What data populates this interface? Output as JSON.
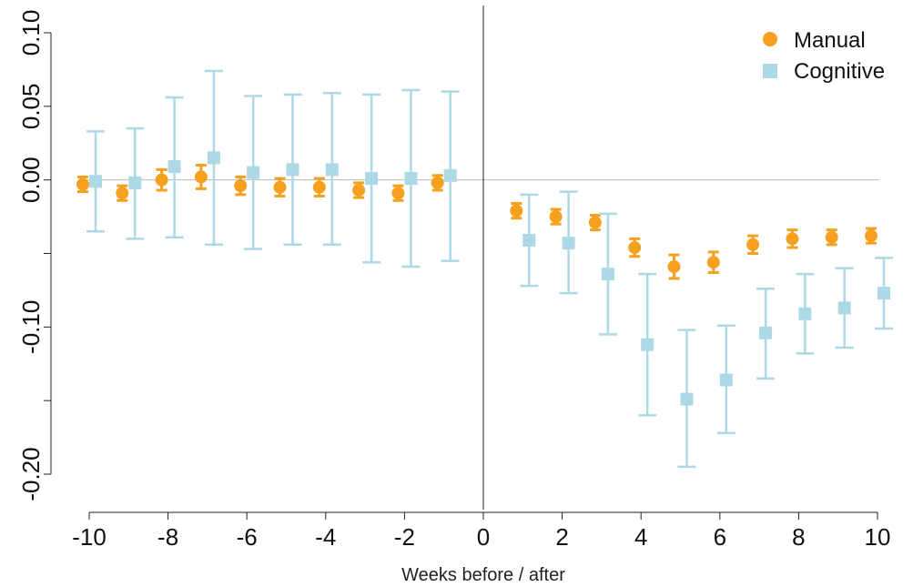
{
  "chart_data": {
    "type": "scatter",
    "title": "",
    "xlabel": "Weeks before / after",
    "ylabel": "",
    "xlim": [
      -10,
      10
    ],
    "ylim": [
      -0.2,
      0.1
    ],
    "xticks": [
      "-10",
      "-8",
      "-6",
      "-4",
      "-2",
      "0",
      "2",
      "4",
      "6",
      "8",
      "10"
    ],
    "yticks": [
      "0.10",
      "0.05",
      "0.00",
      "-0.10",
      "-0.20"
    ],
    "ytick_values": [
      0.1,
      0.05,
      0.0,
      -0.1,
      -0.2
    ],
    "y_minor_ticks": [
      -0.05,
      -0.15
    ],
    "reference_lines": {
      "horizontal": 0.0,
      "vertical": 0
    },
    "grid": false,
    "legend_position": "top-right",
    "series": [
      {
        "name": "Manual",
        "marker": "circle",
        "color": "#F5A01F",
        "points": [
          {
            "x": -10,
            "y": -0.003,
            "lo": -0.008,
            "hi": 0.002
          },
          {
            "x": -9,
            "y": -0.009,
            "lo": -0.014,
            "hi": -0.004
          },
          {
            "x": -8,
            "y": 0.0,
            "lo": -0.007,
            "hi": 0.007
          },
          {
            "x": -7,
            "y": 0.002,
            "lo": -0.006,
            "hi": 0.01
          },
          {
            "x": -6,
            "y": -0.004,
            "lo": -0.01,
            "hi": 0.002
          },
          {
            "x": -5,
            "y": -0.005,
            "lo": -0.011,
            "hi": 0.001
          },
          {
            "x": -4,
            "y": -0.005,
            "lo": -0.011,
            "hi": 0.001
          },
          {
            "x": -3,
            "y": -0.007,
            "lo": -0.012,
            "hi": -0.002
          },
          {
            "x": -2,
            "y": -0.009,
            "lo": -0.014,
            "hi": -0.004
          },
          {
            "x": -1,
            "y": -0.002,
            "lo": -0.007,
            "hi": 0.003
          },
          {
            "x": 1,
            "y": -0.021,
            "lo": -0.026,
            "hi": -0.016
          },
          {
            "x": 2,
            "y": -0.025,
            "lo": -0.03,
            "hi": -0.02
          },
          {
            "x": 3,
            "y": -0.029,
            "lo": -0.034,
            "hi": -0.024
          },
          {
            "x": 4,
            "y": -0.046,
            "lo": -0.052,
            "hi": -0.04
          },
          {
            "x": 5,
            "y": -0.059,
            "lo": -0.067,
            "hi": -0.051
          },
          {
            "x": 6,
            "y": -0.056,
            "lo": -0.063,
            "hi": -0.049
          },
          {
            "x": 7,
            "y": -0.044,
            "lo": -0.05,
            "hi": -0.038
          },
          {
            "x": 8,
            "y": -0.04,
            "lo": -0.046,
            "hi": -0.034
          },
          {
            "x": 9,
            "y": -0.039,
            "lo": -0.044,
            "hi": -0.034
          },
          {
            "x": 10,
            "y": -0.038,
            "lo": -0.043,
            "hi": -0.033
          }
        ]
      },
      {
        "name": "Cognitive",
        "marker": "square",
        "color": "#ADD8E6",
        "points": [
          {
            "x": -10,
            "y": -0.001,
            "lo": -0.035,
            "hi": 0.033
          },
          {
            "x": -9,
            "y": -0.002,
            "lo": -0.04,
            "hi": 0.035
          },
          {
            "x": -8,
            "y": 0.009,
            "lo": -0.039,
            "hi": 0.056
          },
          {
            "x": -7,
            "y": 0.015,
            "lo": -0.044,
            "hi": 0.074
          },
          {
            "x": -6,
            "y": 0.005,
            "lo": -0.047,
            "hi": 0.057
          },
          {
            "x": -5,
            "y": 0.007,
            "lo": -0.044,
            "hi": 0.058
          },
          {
            "x": -4,
            "y": 0.007,
            "lo": -0.044,
            "hi": 0.059
          },
          {
            "x": -3,
            "y": 0.001,
            "lo": -0.056,
            "hi": 0.058
          },
          {
            "x": -2,
            "y": 0.001,
            "lo": -0.059,
            "hi": 0.061
          },
          {
            "x": -1,
            "y": 0.003,
            "lo": -0.055,
            "hi": 0.06
          },
          {
            "x": 1,
            "y": -0.041,
            "lo": -0.072,
            "hi": -0.01
          },
          {
            "x": 2,
            "y": -0.043,
            "lo": -0.077,
            "hi": -0.008
          },
          {
            "x": 3,
            "y": -0.064,
            "lo": -0.105,
            "hi": -0.023
          },
          {
            "x": 4,
            "y": -0.112,
            "lo": -0.16,
            "hi": -0.064
          },
          {
            "x": 5,
            "y": -0.149,
            "lo": -0.195,
            "hi": -0.102
          },
          {
            "x": 6,
            "y": -0.136,
            "lo": -0.172,
            "hi": -0.099
          },
          {
            "x": 7,
            "y": -0.104,
            "lo": -0.135,
            "hi": -0.074
          },
          {
            "x": 8,
            "y": -0.091,
            "lo": -0.118,
            "hi": -0.064
          },
          {
            "x": 9,
            "y": -0.087,
            "lo": -0.114,
            "hi": -0.06
          },
          {
            "x": 10,
            "y": -0.077,
            "lo": -0.101,
            "hi": -0.053
          }
        ]
      }
    ]
  }
}
